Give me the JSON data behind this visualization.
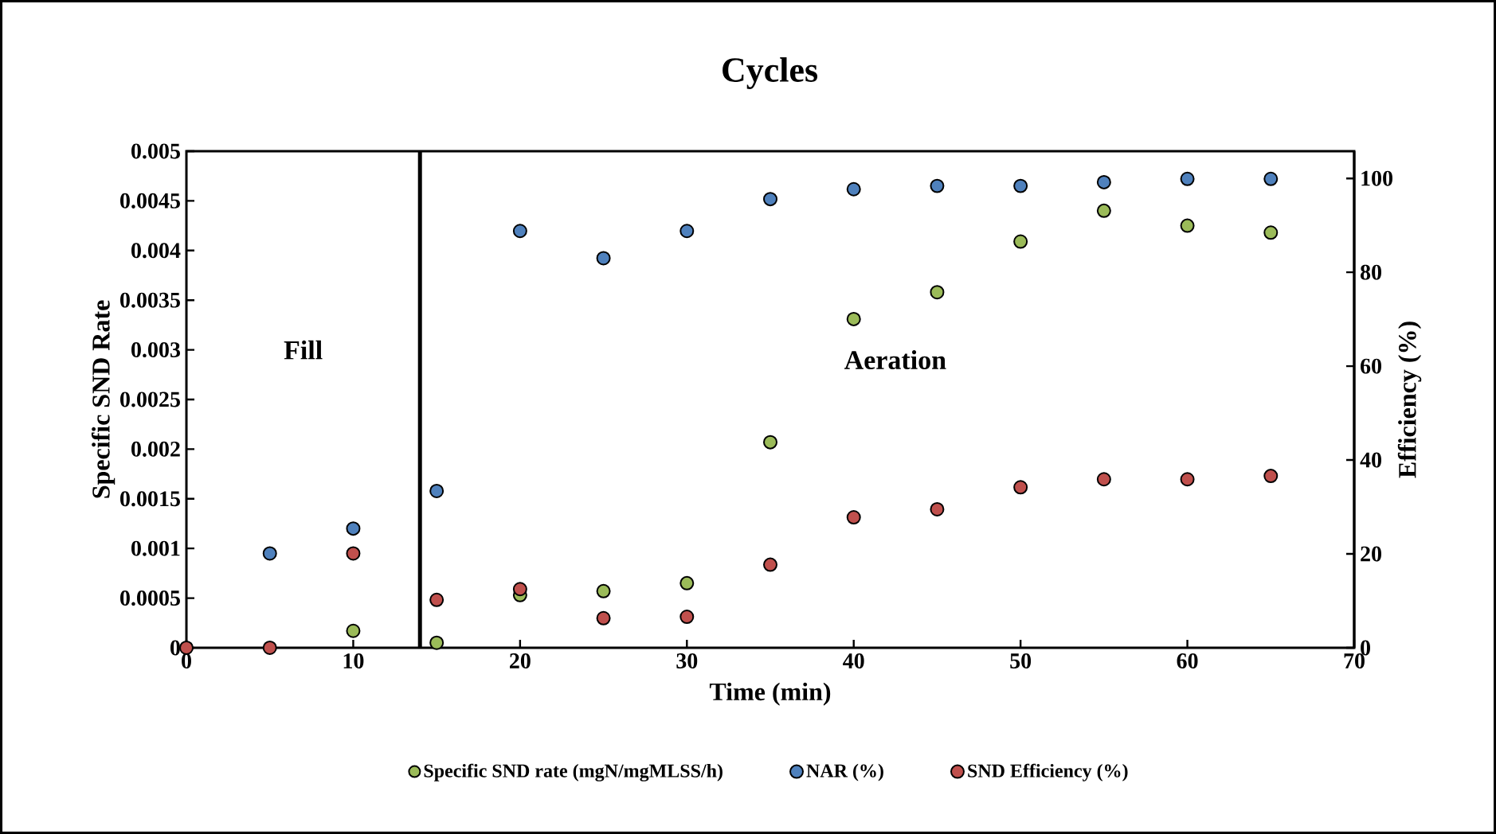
{
  "chart_data": {
    "type": "scatter",
    "title": "Cycles",
    "xlabel": "Time (min)",
    "ylabel": "Specific SND Rate",
    "y2label": "Efficiency (%)",
    "x": [
      0,
      5,
      10,
      15,
      20,
      25,
      30,
      35,
      40,
      45,
      50,
      55,
      60,
      65
    ],
    "series": [
      {
        "name": "Specific SND rate (mgN/mgMLSS/h)",
        "color": "#9bbb59",
        "values": [
          null,
          null,
          0.00017,
          5e-05,
          0.00053,
          0.00057,
          0.00065,
          0.00207,
          0.00331,
          0.00358,
          0.00409,
          0.0044,
          0.00425,
          0.00418
        ]
      },
      {
        "name": "NAR (%)",
        "color": "#4f81bd",
        "axis": "y2",
        "values": [
          null,
          20.1,
          25.4,
          33.4,
          88.8,
          83,
          88.8,
          95.6,
          97.7,
          98.4,
          98.4,
          99.2,
          99.9,
          99.9
        ]
      },
      {
        "name": "SND Efficiency (%)",
        "color": "#c0504d",
        "axis": "y2",
        "values": [
          0,
          0,
          20.1,
          10.2,
          12.5,
          6.3,
          6.6,
          17.7,
          27.8,
          29.5,
          34.2,
          35.9,
          35.9,
          36.6
        ]
      }
    ],
    "xlim": [
      0,
      70
    ],
    "xticks": [
      0,
      10,
      20,
      30,
      40,
      50,
      60,
      70
    ],
    "ylim": [
      0,
      0.005
    ],
    "yticks": [
      0,
      0.0005,
      0.001,
      0.0015,
      0.002,
      0.0025,
      0.003,
      0.0035,
      0.004,
      0.0045,
      0.005
    ],
    "y2lim": [
      0,
      105.8
    ],
    "y2ticks": [
      0,
      20,
      40,
      60,
      80,
      100
    ],
    "ref_lines": [
      {
        "axis": "x",
        "value": 14,
        "color": "#000000"
      }
    ],
    "annotations": [
      "Fill",
      "Aeration"
    ],
    "legend": "bottom",
    "marker": "circle"
  }
}
